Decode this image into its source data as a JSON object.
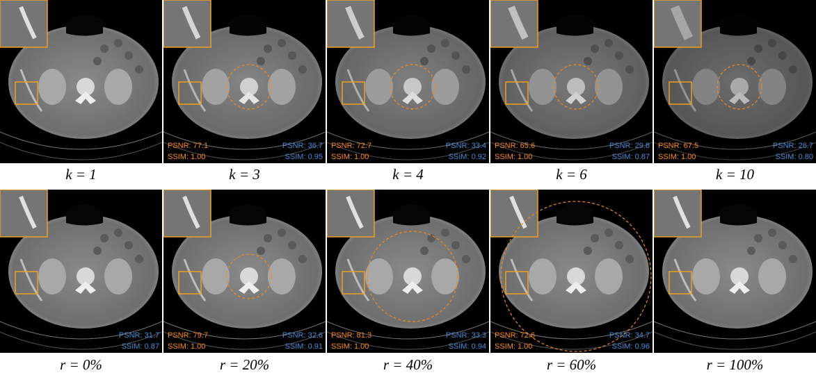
{
  "rows": [
    {
      "panels": [
        {
          "label": "k = 1"
        },
        {
          "label": "k = 3",
          "roi_metrics": {
            "psnr": "PSNR: 77.1",
            "ssim": "SSIM: 1.00"
          },
          "full_metrics": {
            "psnr": "PSNR: 36.7",
            "ssim": "SSIM: 0.95"
          }
        },
        {
          "label": "k = 4",
          "roi_metrics": {
            "psnr": "PSNR: 72.7",
            "ssim": "SSIM: 1.00"
          },
          "full_metrics": {
            "psnr": "PSNR: 33.4",
            "ssim": "SSIM: 0.92"
          }
        },
        {
          "label": "k = 6",
          "roi_metrics": {
            "psnr": "PSNR: 65.6",
            "ssim": "SSIM: 1.00"
          },
          "full_metrics": {
            "psnr": "PSNR: 29.8",
            "ssim": "SSIM: 0.87"
          }
        },
        {
          "label": "k = 10",
          "roi_metrics": {
            "psnr": "PSNR: 67.5",
            "ssim": "SSIM: 1.00"
          },
          "full_metrics": {
            "psnr": "PSNR: 26.7",
            "ssim": "SSIM: 0.80"
          }
        }
      ]
    },
    {
      "panels": [
        {
          "label": "r = 0%",
          "full_metrics": {
            "psnr": "PSNR: 31.7",
            "ssim": "SSIM: 0.87"
          }
        },
        {
          "label": "r = 20%",
          "roi_metrics": {
            "psnr": "PSNR: 79.7",
            "ssim": "SSIM: 1.00"
          },
          "full_metrics": {
            "psnr": "PSNR: 32.6",
            "ssim": "SSIM: 0.91"
          }
        },
        {
          "label": "r = 40%",
          "roi_metrics": {
            "psnr": "PSNR: 81.3",
            "ssim": "SSIM: 1.00"
          },
          "full_metrics": {
            "psnr": "PSNR: 33.3",
            "ssim": "SSIM: 0.94"
          }
        },
        {
          "label": "r = 60%",
          "roi_metrics": {
            "psnr": "PSNR: 72.6",
            "ssim": "SSIM: 1.00"
          },
          "full_metrics": {
            "psnr": "PSNR: 34.7",
            "ssim": "SSIM: 0.96"
          }
        },
        {
          "label": "r = 100%"
        }
      ]
    }
  ]
}
